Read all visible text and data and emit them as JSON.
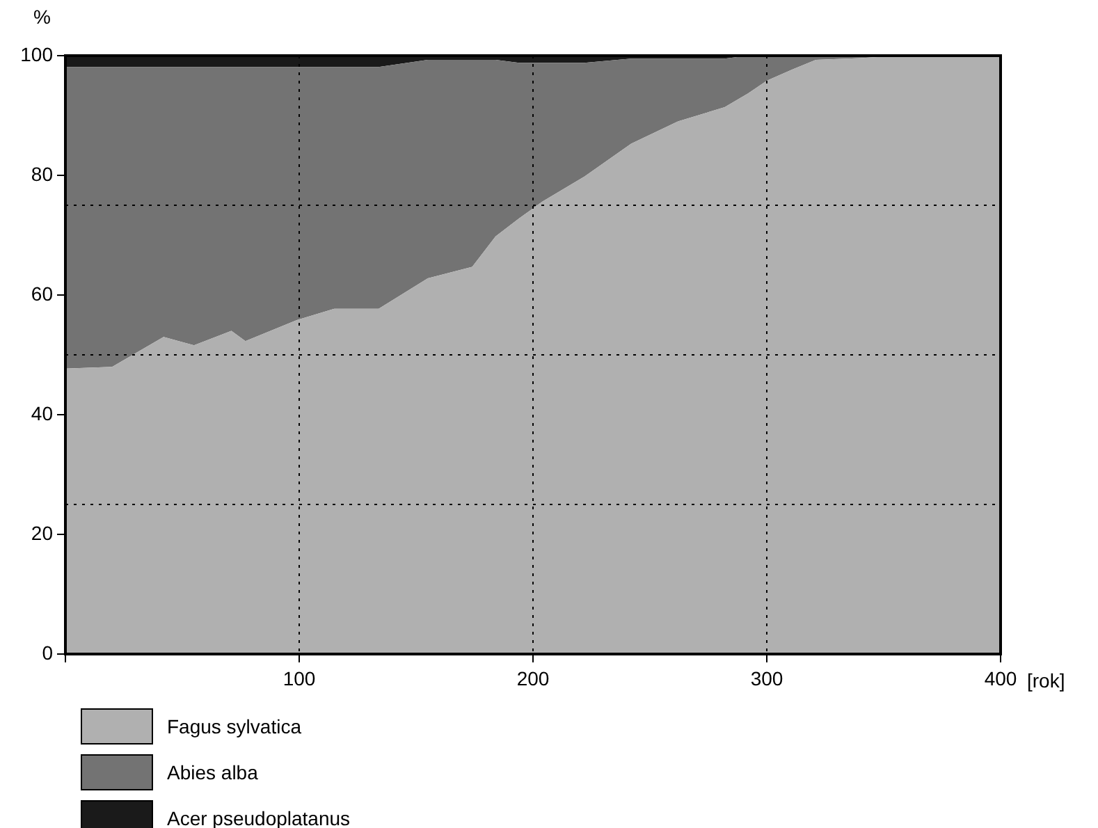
{
  "chart_data": {
    "type": "area",
    "stacked": true,
    "ylabel": "%",
    "xlabel": "[rok]",
    "x": [
      0,
      20,
      42,
      55,
      71,
      77,
      99,
      115,
      134,
      155,
      174,
      184,
      194,
      204,
      222,
      242,
      262,
      282,
      292,
      300,
      311,
      321,
      340,
      357,
      400
    ],
    "series": [
      {
        "name": "Fagus sylvatica",
        "color": "#b0b0b0",
        "values": [
          47.7,
          48,
          53,
          51.6,
          54,
          52.3,
          55.8,
          57.7,
          57.7,
          62.8,
          64.7,
          69.8,
          72.8,
          75.6,
          79.8,
          85.3,
          89,
          91.4,
          93.7,
          95.8,
          97.7,
          99.3,
          99.6,
          100,
          100
        ]
      },
      {
        "name": "Abies alba",
        "color": "#737373",
        "values": [
          50.4,
          50.1,
          45.1,
          46.5,
          44.1,
          45.8,
          42.3,
          40.4,
          40.4,
          36.5,
          34.6,
          29.5,
          26,
          23.2,
          19,
          14.2,
          10.5,
          8.1,
          6.3,
          4.2,
          2.3,
          0.7,
          0.4,
          0,
          0
        ]
      },
      {
        "name": "Acer pseudoplatanus",
        "color": "#1a1a1a",
        "values": [
          1.9,
          1.9,
          1.9,
          1.9,
          1.9,
          1.9,
          1.9,
          1.9,
          1.9,
          0.7,
          0.7,
          0.7,
          1.2,
          1.2,
          1.2,
          0.5,
          0.5,
          0.5,
          0,
          0,
          0,
          0,
          0,
          0,
          0
        ]
      }
    ],
    "xlim": [
      0,
      400
    ],
    "xticks": [
      {
        "value": 0,
        "label": null
      },
      100,
      200,
      300,
      400
    ],
    "ylim": [
      0,
      100
    ],
    "yticks": [
      0,
      20,
      40,
      60,
      80,
      100
    ],
    "grid": "x",
    "ref_lines": [
      {
        "axis": "y",
        "value": 25,
        "line_style": "dotted"
      },
      {
        "axis": "y",
        "value": 50,
        "line_style": "dotted"
      },
      {
        "axis": "y",
        "value": 75,
        "line_style": "dotted"
      }
    ],
    "legend": "bottom left"
  }
}
